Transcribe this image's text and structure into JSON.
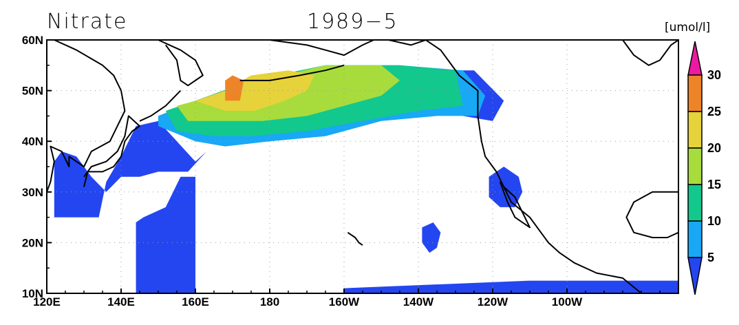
{
  "header": {
    "variable": "Nitrate",
    "date": "1989−5",
    "units": "[umol/l]"
  },
  "map": {
    "lon_range": [
      120,
      290
    ],
    "lat_range": [
      10,
      60
    ],
    "x_tick_labels": [
      {
        "lon": 120,
        "label": "120E"
      },
      {
        "lon": 140,
        "label": "140E"
      },
      {
        "lon": 160,
        "label": "160E"
      },
      {
        "lon": 180,
        "label": "180"
      },
      {
        "lon": 200,
        "label": "160W"
      },
      {
        "lon": 220,
        "label": "140W"
      },
      {
        "lon": 240,
        "label": "120W"
      },
      {
        "lon": 260,
        "label": "100W"
      }
    ],
    "y_tick_labels": [
      {
        "lat": 10,
        "label": "10N"
      },
      {
        "lat": 20,
        "label": "20N"
      },
      {
        "lat": 30,
        "label": "30N"
      },
      {
        "lat": 40,
        "label": "40N"
      },
      {
        "lat": 50,
        "label": "50N"
      },
      {
        "lat": 60,
        "label": "60N"
      }
    ],
    "grid": "dotted"
  },
  "colorbar": {
    "labels": [
      "5",
      "10",
      "15",
      "20",
      "25",
      "30"
    ],
    "colors": [
      "#2446f0",
      "#18a8f5",
      "#12c88c",
      "#a8dc3c",
      "#e6d23a",
      "#ee8428",
      "#ec1aa0"
    ]
  },
  "nitrate_regions": [
    {
      "level": 0,
      "points": [
        [
          145,
          10
        ],
        [
          160,
          10
        ],
        [
          160,
          33
        ],
        [
          156,
          33
        ],
        [
          152,
          27
        ],
        [
          146,
          25
        ],
        [
          144,
          24
        ],
        [
          144,
          10
        ]
      ]
    },
    {
      "level": 0,
      "points": [
        [
          122,
          25
        ],
        [
          134,
          25
        ],
        [
          136,
          32
        ],
        [
          140,
          37
        ],
        [
          144,
          43
        ],
        [
          150,
          44
        ],
        [
          155,
          40
        ],
        [
          160,
          36
        ],
        [
          163,
          38
        ],
        [
          158,
          34
        ],
        [
          150,
          34
        ],
        [
          145,
          33
        ],
        [
          140,
          33
        ],
        [
          136,
          30
        ],
        [
          132,
          33
        ],
        [
          128,
          37
        ],
        [
          124,
          38
        ],
        [
          122,
          36
        ]
      ]
    },
    {
      "level": 0,
      "points": [
        [
          200,
          10
        ],
        [
          290,
          10
        ],
        [
          290,
          12.5
        ],
        [
          250,
          12.5
        ],
        [
          200,
          11
        ]
      ]
    },
    {
      "level": 0,
      "points": [
        [
          243,
          35
        ],
        [
          247,
          33
        ],
        [
          248,
          30
        ],
        [
          246,
          27
        ],
        [
          242,
          27
        ],
        [
          239,
          29
        ],
        [
          239,
          33
        ]
      ]
    },
    {
      "level": 0,
      "points": [
        [
          224,
          24
        ],
        [
          226,
          22
        ],
        [
          225,
          19
        ],
        [
          223,
          18
        ],
        [
          221,
          20
        ],
        [
          221,
          23
        ]
      ]
    },
    {
      "level": 0,
      "points": [
        [
          228,
          54
        ],
        [
          235,
          54
        ],
        [
          243,
          48
        ],
        [
          240,
          44
        ],
        [
          232,
          45
        ]
      ]
    },
    {
      "level": 1,
      "points": [
        [
          150,
          45
        ],
        [
          160,
          48
        ],
        [
          175,
          52
        ],
        [
          195,
          55
        ],
        [
          215,
          55
        ],
        [
          232,
          54
        ],
        [
          238,
          49
        ],
        [
          236,
          45
        ],
        [
          225,
          45
        ],
        [
          210,
          44
        ],
        [
          195,
          41
        ],
        [
          180,
          40
        ],
        [
          168,
          39
        ],
        [
          160,
          40
        ],
        [
          150,
          43
        ]
      ]
    },
    {
      "level": 2,
      "points": [
        [
          152,
          46
        ],
        [
          160,
          48
        ],
        [
          175,
          52
        ],
        [
          195,
          55
        ],
        [
          215,
          55
        ],
        [
          230,
          54
        ],
        [
          232,
          47
        ],
        [
          220,
          46
        ],
        [
          205,
          44
        ],
        [
          190,
          42
        ],
        [
          175,
          41
        ],
        [
          165,
          41
        ],
        [
          155,
          42
        ]
      ]
    },
    {
      "level": 3,
      "points": [
        [
          155,
          47
        ],
        [
          165,
          49
        ],
        [
          178,
          52
        ],
        [
          195,
          55
        ],
        [
          210,
          55
        ],
        [
          215,
          52
        ],
        [
          210,
          49
        ],
        [
          200,
          47
        ],
        [
          190,
          45
        ],
        [
          178,
          44
        ],
        [
          168,
          44
        ],
        [
          158,
          44
        ]
      ]
    },
    {
      "level": 4,
      "points": [
        [
          160,
          48
        ],
        [
          168,
          50
        ],
        [
          175,
          53
        ],
        [
          185,
          54
        ],
        [
          192,
          53
        ],
        [
          190,
          50
        ],
        [
          184,
          48
        ],
        [
          176,
          46
        ],
        [
          168,
          46
        ]
      ]
    },
    {
      "level": 5,
      "points": [
        [
          168,
          48
        ],
        [
          172,
          48
        ],
        [
          173,
          52
        ],
        [
          170,
          53
        ],
        [
          168,
          52
        ]
      ]
    }
  ],
  "coastlines": [
    {
      "name": "asia",
      "points": [
        [
          122,
          60
        ],
        [
          128,
          58
        ],
        [
          135,
          55
        ],
        [
          138,
          53
        ],
        [
          140,
          50
        ],
        [
          141,
          46
        ],
        [
          139,
          43
        ],
        [
          137,
          40
        ],
        [
          132,
          38
        ],
        [
          130,
          35
        ],
        [
          126,
          37
        ],
        [
          126,
          35
        ],
        [
          124,
          38
        ],
        [
          121,
          39
        ],
        [
          122,
          36
        ],
        [
          121,
          32
        ],
        [
          120,
          30
        ]
      ]
    },
    {
      "name": "japan",
      "points": [
        [
          130,
          31
        ],
        [
          131,
          34
        ],
        [
          135,
          34
        ],
        [
          138,
          35
        ],
        [
          140,
          37
        ],
        [
          141,
          40
        ],
        [
          143,
          42
        ],
        [
          145,
          43
        ],
        [
          142,
          45
        ],
        [
          141,
          41
        ],
        [
          139,
          38
        ],
        [
          136,
          36
        ],
        [
          132,
          35
        ],
        [
          130,
          33
        ]
      ]
    },
    {
      "name": "kamchatka",
      "points": [
        [
          150,
          60
        ],
        [
          156,
          58
        ],
        [
          160,
          56
        ],
        [
          162,
          53
        ],
        [
          158,
          51
        ],
        [
          156,
          52
        ],
        [
          155,
          56
        ],
        [
          152,
          59
        ]
      ]
    },
    {
      "name": "kuril",
      "points": [
        [
          145,
          44
        ],
        [
          148,
          45
        ],
        [
          152,
          47
        ],
        [
          156,
          50
        ]
      ]
    },
    {
      "name": "alaska",
      "points": [
        [
          163,
          60
        ],
        [
          168,
          60
        ],
        [
          172,
          60
        ],
        [
          180,
          60
        ],
        [
          190,
          59
        ],
        [
          195,
          58
        ],
        [
          200,
          57
        ],
        [
          205,
          59
        ],
        [
          208,
          60
        ]
      ]
    },
    {
      "name": "aleutians",
      "points": [
        [
          172,
          52
        ],
        [
          180,
          52
        ],
        [
          188,
          53
        ],
        [
          195,
          54
        ],
        [
          200,
          55
        ]
      ]
    },
    {
      "name": "america",
      "points": [
        [
          212,
          60
        ],
        [
          218,
          59
        ],
        [
          222,
          60
        ],
        [
          226,
          58
        ],
        [
          228,
          56
        ],
        [
          231,
          53
        ],
        [
          236,
          50
        ],
        [
          236,
          45
        ],
        [
          237,
          40
        ],
        [
          238,
          37
        ],
        [
          241,
          34
        ],
        [
          243,
          31
        ],
        [
          245,
          28
        ],
        [
          250,
          25
        ],
        [
          253,
          22
        ],
        [
          255,
          20
        ],
        [
          258,
          18
        ],
        [
          262,
          16
        ],
        [
          268,
          14
        ],
        [
          275,
          13
        ],
        [
          280,
          10
        ]
      ]
    },
    {
      "name": "baja",
      "points": [
        [
          242,
          32
        ],
        [
          244,
          28
        ],
        [
          246,
          25
        ],
        [
          250,
          23
        ],
        [
          248,
          26
        ],
        [
          246,
          29
        ],
        [
          243,
          31
        ]
      ]
    },
    {
      "name": "gulf-mexico",
      "points": [
        [
          290,
          30
        ],
        [
          283,
          30
        ],
        [
          278,
          28
        ],
        [
          276,
          25
        ],
        [
          278,
          22
        ],
        [
          283,
          21
        ],
        [
          287,
          21
        ],
        [
          290,
          22
        ]
      ]
    },
    {
      "name": "hawaii",
      "points": [
        [
          201,
          22
        ],
        [
          203,
          21
        ],
        [
          204,
          20
        ],
        [
          205,
          19.5
        ]
      ]
    },
    {
      "name": "hudson",
      "points": [
        [
          275,
          60
        ],
        [
          278,
          57
        ],
        [
          282,
          55
        ],
        [
          285,
          56
        ],
        [
          288,
          59
        ],
        [
          290,
          60
        ]
      ]
    }
  ]
}
